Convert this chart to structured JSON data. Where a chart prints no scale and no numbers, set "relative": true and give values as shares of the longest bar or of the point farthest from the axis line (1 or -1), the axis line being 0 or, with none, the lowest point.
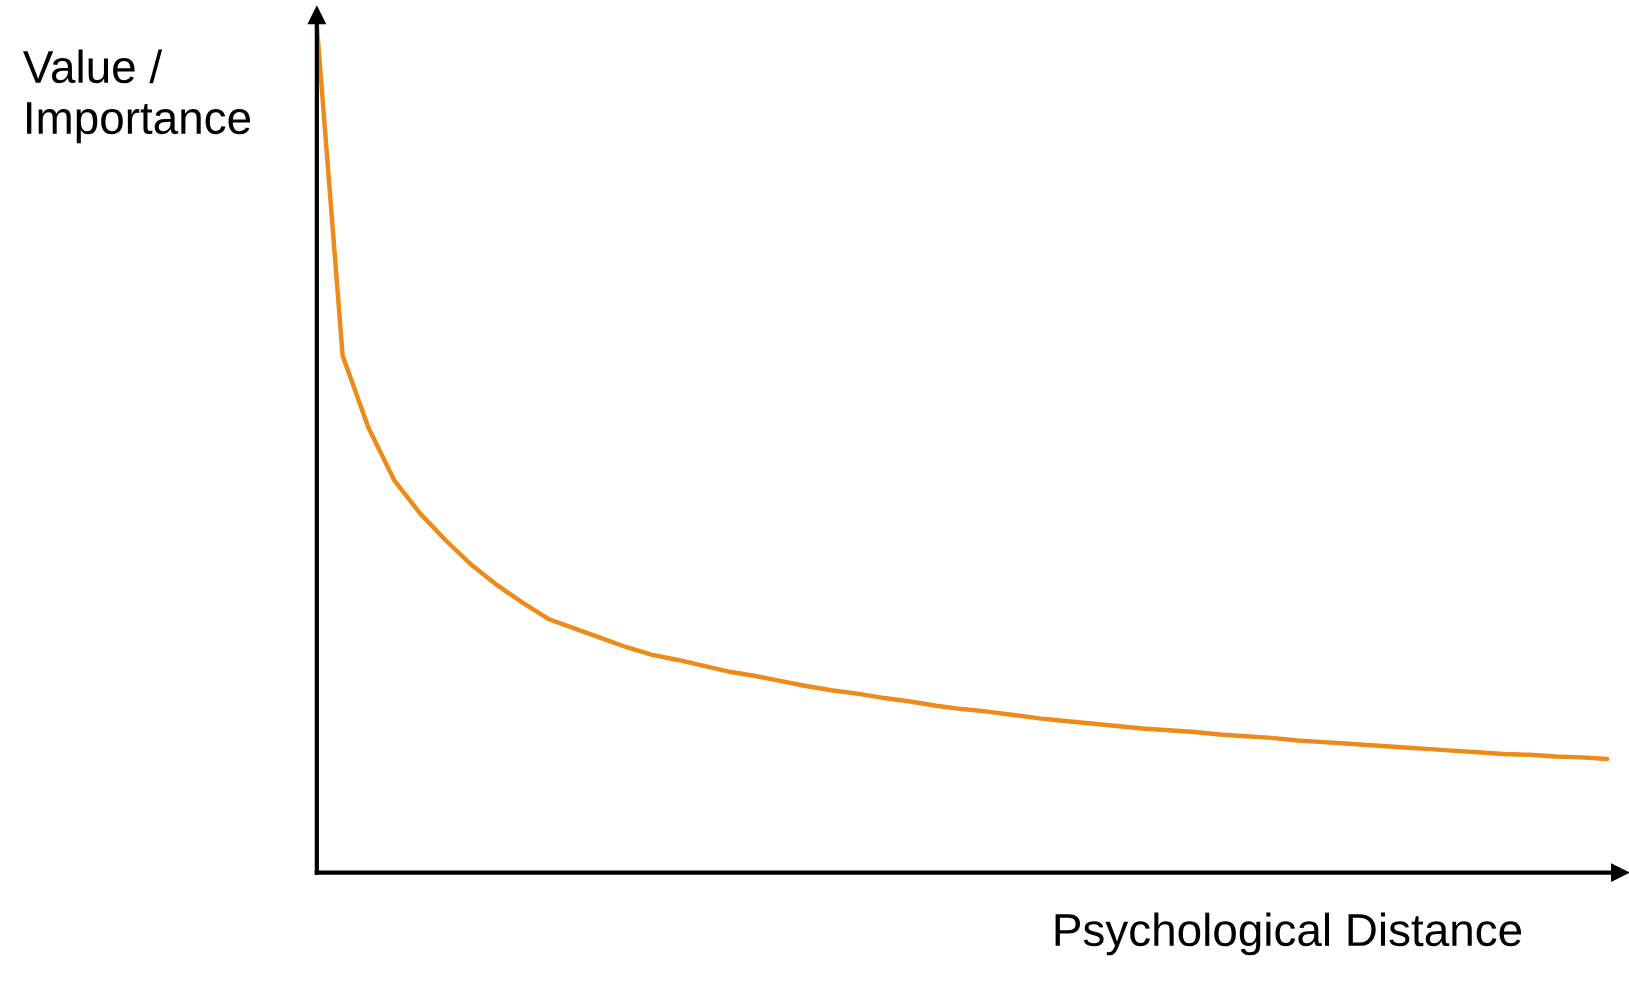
{
  "chart_data": {
    "type": "line",
    "relative": true,
    "xlabel": "Psychological Distance",
    "ylabel": "Value /\nImportance",
    "categories": [
      null,
      null,
      null,
      null,
      null,
      null,
      null,
      null,
      null,
      null,
      null,
      null,
      null,
      null,
      null,
      null,
      null,
      null,
      null,
      null,
      null,
      null,
      null,
      null,
      null,
      null,
      null,
      null,
      null,
      null,
      null,
      null,
      null,
      null,
      null,
      null,
      null,
      null,
      null,
      null,
      null,
      null,
      null,
      null,
      null,
      null,
      null,
      null,
      null,
      null,
      null
    ],
    "series": [
      {
        "color": "#ee8a1a",
        "values": [
          1.0,
          0.61,
          0.525,
          0.463,
          0.424,
          0.392,
          0.363,
          0.339,
          0.318,
          0.299,
          0.288,
          0.277,
          0.266,
          0.257,
          0.251,
          0.244,
          0.237,
          0.232,
          0.226,
          0.22,
          0.215,
          0.211,
          0.206,
          0.202,
          0.197,
          0.193,
          0.19,
          0.186,
          0.182,
          0.179,
          0.176,
          0.173,
          0.17,
          0.168,
          0.166,
          0.163,
          0.161,
          0.159,
          0.156,
          0.154,
          0.152,
          0.15,
          0.148,
          0.146,
          0.144,
          0.142,
          0.14,
          0.139,
          0.137,
          0.136,
          0.134
        ]
      }
    ],
    "marker": "none",
    "line_style": "solid"
  }
}
